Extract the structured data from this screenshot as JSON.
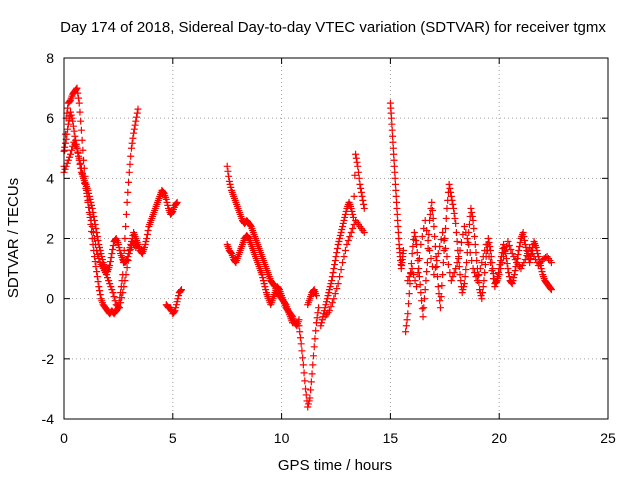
{
  "chart_data": {
    "type": "scatter",
    "title": "Day 174 of 2018, Sidereal Day-to-day VTEC variation (SDTVAR) for receiver tgmx",
    "xlabel": "GPS time / hours",
    "ylabel": "SDTVAR / TECUs",
    "xlim": [
      0,
      25
    ],
    "ylim": [
      -4,
      8
    ],
    "xticks": [
      "0",
      "5",
      "10",
      "15",
      "20",
      "25"
    ],
    "yticks": [
      "-4",
      "-2",
      "0",
      "2",
      "4",
      "6",
      "8"
    ],
    "grid": true,
    "marker": "+",
    "color": "#ff0000",
    "series": [
      {
        "name": "SDTVAR",
        "segments": [
          {
            "x": [
              0.0,
              0.1,
              0.2,
              0.3,
              0.4,
              0.5,
              0.6,
              0.7,
              0.8,
              0.9,
              1.0,
              1.1,
              1.2,
              1.3,
              1.4,
              1.5,
              1.6,
              1.7,
              1.8,
              1.9,
              2.0,
              2.1,
              2.2,
              2.3,
              2.4,
              2.5,
              2.6,
              2.7,
              2.8,
              2.9,
              3.0,
              3.1,
              3.2,
              3.3,
              3.4
            ],
            "y": [
              4.4,
              6.0,
              6.5,
              6.6,
              6.8,
              6.9,
              7.0,
              6.5,
              5.6,
              4.6,
              3.8,
              3.2,
              2.7,
              2.0,
              1.4,
              0.9,
              0.4,
              0.0,
              -0.2,
              -0.3,
              -0.4,
              -0.5,
              -0.4,
              -0.5,
              -0.4,
              -0.3,
              0.2,
              0.8,
              2.0,
              3.2,
              4.2,
              5.0,
              5.5,
              5.9,
              6.3
            ]
          },
          {
            "x": [
              0.0,
              0.1,
              0.2,
              0.3,
              0.4,
              0.5,
              0.6,
              0.7,
              0.8,
              0.9,
              1.0,
              1.1,
              1.2,
              1.3,
              1.4,
              1.5,
              1.6,
              1.7,
              1.8,
              1.9,
              2.0,
              2.1,
              2.2,
              2.3,
              2.4,
              2.5,
              2.6,
              2.7,
              2.8,
              2.9,
              3.0,
              3.1,
              3.2,
              3.3,
              3.4,
              3.5,
              3.6,
              3.7,
              3.8,
              3.9,
              4.0,
              4.1,
              4.2,
              4.3,
              4.4,
              4.5,
              4.6,
              4.7,
              4.8,
              4.9,
              5.0,
              5.1,
              5.2
            ],
            "y": [
              4.9,
              5.3,
              5.8,
              6.2,
              5.9,
              5.4,
              5.0,
              4.6,
              4.2,
              4.0,
              3.8,
              3.6,
              3.3,
              3.0,
              2.6,
              2.2,
              1.8,
              1.5,
              1.2,
              1.0,
              0.9,
              1.1,
              1.5,
              1.9,
              2.0,
              1.8,
              1.5,
              1.3,
              1.2,
              1.3,
              1.6,
              1.9,
              2.2,
              2.0,
              1.8,
              1.6,
              1.5,
              1.7,
              2.0,
              2.4,
              2.6,
              2.8,
              3.0,
              3.2,
              3.4,
              3.6,
              3.5,
              3.3,
              3.0,
              2.8,
              2.9,
              3.1,
              3.2
            ]
          },
          {
            "x": [
              0.0,
              0.15,
              0.3,
              0.45,
              0.6,
              0.75,
              0.9,
              1.05,
              1.2,
              1.35,
              1.5,
              1.65,
              1.8,
              1.95,
              2.1,
              2.25,
              2.4,
              2.55,
              2.7,
              2.85,
              3.0,
              3.15,
              3.3
            ],
            "y": [
              4.2,
              4.5,
              4.8,
              5.2,
              5.0,
              4.5,
              4.0,
              3.5,
              2.8,
              2.2,
              1.6,
              1.2,
              1.0,
              0.8,
              0.5,
              0.2,
              -0.2,
              -0.3,
              0.2,
              0.8,
              1.5,
              1.9,
              1.7
            ]
          },
          {
            "x": [
              4.7,
              4.8,
              4.9,
              5.0,
              5.1,
              5.2,
              5.3,
              5.4
            ],
            "y": [
              -0.2,
              -0.3,
              -0.3,
              -0.5,
              -0.4,
              -0.1,
              0.2,
              0.3
            ]
          },
          {
            "x": [
              7.5,
              7.6,
              7.7,
              7.8,
              7.9,
              8.0,
              8.1,
              8.2,
              8.3,
              8.4,
              8.5,
              8.6,
              8.7,
              8.8,
              8.9,
              9.0,
              9.1,
              9.2,
              9.3,
              9.4,
              9.5,
              9.6,
              9.7,
              9.8,
              9.9,
              10.0,
              10.1,
              10.2,
              10.3,
              10.4,
              10.5,
              10.6,
              10.7,
              10.8
            ],
            "y": [
              4.4,
              3.9,
              3.6,
              3.4,
              3.2,
              3.0,
              2.8,
              2.6,
              2.5,
              2.6,
              2.5,
              2.4,
              2.2,
              2.0,
              1.8,
              1.6,
              1.4,
              1.2,
              1.0,
              0.8,
              0.6,
              0.5,
              0.4,
              0.2,
              0.1,
              0.0,
              -0.1,
              -0.2,
              -0.4,
              -0.5,
              -0.6,
              -0.8,
              -0.9,
              -0.7
            ]
          },
          {
            "x": [
              7.5,
              7.6,
              7.7,
              7.8,
              7.9,
              8.0,
              8.1,
              8.2,
              8.3,
              8.4,
              8.5,
              8.6,
              8.7,
              8.8,
              8.9,
              9.0,
              9.1,
              9.2,
              9.3,
              9.4,
              9.5,
              9.6,
              9.7,
              9.8,
              9.9,
              10.0,
              10.1,
              10.2,
              10.3,
              10.4,
              10.5
            ],
            "y": [
              1.8,
              1.6,
              1.5,
              1.3,
              1.2,
              1.4,
              1.6,
              1.8,
              2.0,
              2.1,
              2.0,
              1.8,
              1.6,
              1.4,
              1.2,
              1.0,
              0.8,
              0.5,
              0.2,
              0.0,
              -0.2,
              0.0,
              0.2,
              0.4,
              0.3,
              0.1,
              -0.1,
              -0.3,
              -0.4,
              -0.6,
              -0.8
            ]
          },
          {
            "x": [
              10.8,
              10.9,
              11.0,
              11.1,
              11.2,
              11.3,
              11.4,
              11.5,
              11.6,
              11.7
            ],
            "y": [
              -0.9,
              -1.5,
              -2.2,
              -3.0,
              -3.6,
              -3.3,
              -2.5,
              -1.6,
              -0.8,
              -0.3
            ]
          },
          {
            "x": [
              11.2,
              11.3,
              11.4,
              11.5,
              11.6
            ],
            "y": [
              -0.2,
              0.0,
              0.2,
              0.3,
              0.1
            ]
          },
          {
            "x": [
              11.8,
              11.9,
              12.0,
              12.1,
              12.2,
              12.3,
              12.4,
              12.5,
              12.6,
              12.7,
              12.8,
              12.9,
              13.0,
              13.1,
              13.2,
              13.3,
              13.4,
              13.5,
              13.6,
              13.7,
              13.8
            ],
            "y": [
              -0.9,
              -0.6,
              -0.3,
              0.0,
              0.3,
              0.6,
              1.0,
              1.4,
              1.8,
              2.1,
              2.4,
              2.7,
              3.0,
              3.2,
              3.0,
              2.7,
              4.8,
              4.4,
              3.8,
              3.4,
              3.0
            ]
          },
          {
            "x": [
              12.0,
              12.2,
              12.4,
              12.6,
              12.8,
              13.0,
              13.2,
              13.4,
              13.6,
              13.8
            ],
            "y": [
              -0.6,
              -0.4,
              0.0,
              0.5,
              1.2,
              1.8,
              2.2,
              2.6,
              2.4,
              2.2
            ]
          },
          {
            "x": [
              15.0,
              15.05,
              15.1,
              15.15,
              15.2,
              15.25,
              15.3,
              15.35,
              15.4,
              15.45,
              15.5,
              15.55,
              15.6
            ],
            "y": [
              6.5,
              6.0,
              5.4,
              4.8,
              4.2,
              3.6,
              3.0,
              2.4,
              1.8,
              1.4,
              1.0,
              1.3,
              1.6
            ]
          },
          {
            "x": [
              15.7,
              15.8,
              15.9,
              16.0,
              16.1,
              16.2,
              16.3,
              16.4,
              16.5,
              16.6,
              16.7,
              16.8,
              16.9,
              17.0,
              17.1,
              17.2,
              17.3,
              17.4,
              17.5,
              17.6,
              17.7,
              17.8,
              17.9,
              18.0,
              18.1,
              18.2,
              18.3,
              18.4,
              18.5,
              18.6,
              18.7,
              18.8,
              18.9,
              19.0,
              19.1,
              19.2,
              19.3,
              19.4,
              19.5,
              19.6,
              19.7,
              19.8,
              19.9,
              20.0,
              20.1,
              20.2,
              20.3,
              20.4,
              20.5,
              20.6,
              20.7,
              20.8,
              20.9,
              21.0,
              21.1,
              21.2,
              21.3,
              21.4,
              21.5,
              21.6,
              21.7,
              21.8,
              21.9,
              22.0,
              22.1,
              22.2,
              22.3,
              22.4
            ],
            "y": [
              -1.1,
              -0.5,
              0.5,
              1.5,
              2.2,
              1.8,
              1.0,
              0.2,
              -0.6,
              0.3,
              1.2,
              2.6,
              3.2,
              2.4,
              1.4,
              0.4,
              -0.3,
              0.8,
              2.0,
              3.0,
              3.8,
              3.4,
              3.0,
              2.5,
              1.6,
              0.8,
              0.2,
              0.5,
              1.2,
              2.2,
              3.0,
              2.6,
              1.8,
              1.0,
              0.3,
              0.0,
              0.6,
              1.4,
              2.0,
              1.6,
              1.0,
              0.5,
              0.6,
              1.0,
              1.4,
              1.8,
              1.5,
              1.0,
              0.6,
              0.5,
              0.8,
              1.2,
              1.6,
              2.0,
              2.2,
              1.8,
              1.5,
              1.2,
              1.6,
              1.9,
              1.7,
              1.4,
              1.1,
              0.8,
              0.6,
              0.5,
              0.4,
              0.3
            ]
          },
          {
            "x": [
              15.8,
              16.0,
              16.2,
              16.4,
              16.6,
              16.8,
              17.0,
              17.2,
              17.4,
              17.6,
              17.8,
              18.0,
              18.2,
              18.4,
              18.6,
              18.8,
              19.0,
              19.2,
              19.4,
              19.6,
              19.8,
              20.0,
              20.2,
              20.4,
              20.6,
              20.8,
              21.0,
              21.2,
              21.4,
              21.6,
              21.8,
              22.0,
              22.2,
              22.4
            ],
            "y": [
              0.6,
              1.0,
              0.4,
              1.8,
              2.6,
              1.6,
              0.8,
              1.5,
              2.2,
              1.4,
              0.6,
              1.0,
              1.6,
              2.4,
              1.8,
              1.0,
              0.6,
              1.2,
              1.8,
              1.2,
              0.4,
              0.8,
              1.4,
              1.9,
              1.5,
              1.2,
              1.0,
              1.3,
              1.7,
              1.4,
              1.1,
              1.3,
              1.4,
              1.2
            ]
          }
        ]
      }
    ]
  }
}
